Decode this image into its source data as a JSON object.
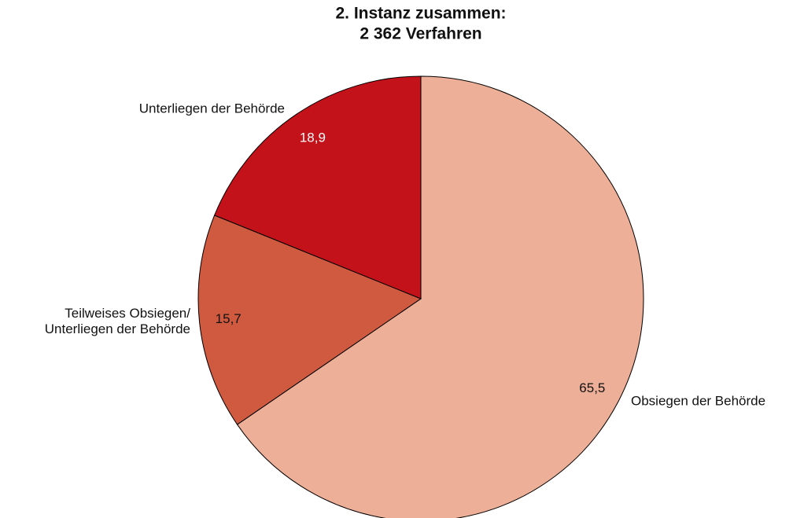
{
  "chart_data": {
    "type": "pie",
    "title": "2. Instanz zusammen:",
    "subtitle": "2 362 Verfahren",
    "categories": [
      "Obsiegen der Behörde",
      "Teilweises Obsiegen/\nUnterliegen der Behörde",
      "Unterliegen der Behörde"
    ],
    "values": [
      65.5,
      15.7,
      18.9
    ],
    "value_labels": [
      "65,5",
      "15,7",
      "18,9"
    ],
    "colors": [
      "#eeaf98",
      "#d05a40",
      "#c4121a"
    ]
  }
}
